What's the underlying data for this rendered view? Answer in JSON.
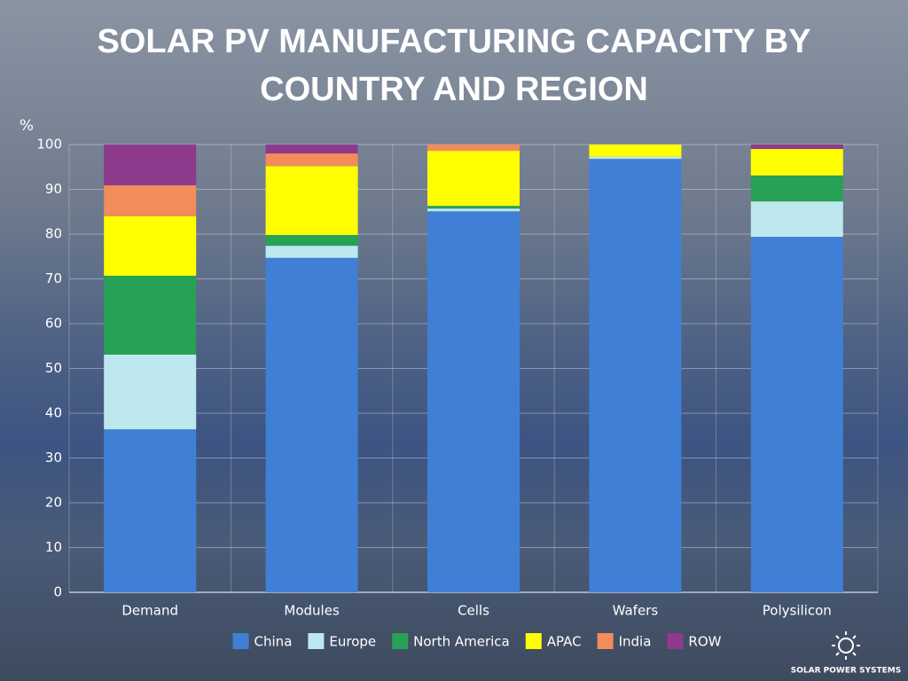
{
  "chart_data": {
    "type": "stacked_bar",
    "title": "SOLAR PV MANUFACTURING CAPACITY BY COUNTRY AND REGION",
    "y_label": "%",
    "categories": [
      "Demand",
      "Modules",
      "Cells",
      "Wafers",
      "Polysilicon"
    ],
    "series": [
      {
        "name": "China",
        "color": "#3f80d6",
        "values": [
          36.4,
          74.7,
          85.1,
          96.8,
          79.4
        ]
      },
      {
        "name": "Europe",
        "color": "#bde8f0",
        "values": [
          16.7,
          2.7,
          0.6,
          0.5,
          7.9
        ]
      },
      {
        "name": "North America",
        "color": "#27a155",
        "values": [
          17.6,
          2.4,
          0.6,
          0,
          5.8
        ]
      },
      {
        "name": "APAC",
        "color": "#ffff00",
        "values": [
          13.3,
          15.4,
          12.3,
          2.7,
          5.9
        ]
      },
      {
        "name": "India",
        "color": "#f28c5a",
        "values": [
          6.9,
          2.8,
          1.4,
          0,
          0
        ]
      },
      {
        "name": "ROW",
        "color": "#8e3a8c",
        "values": [
          9.1,
          2.0,
          0,
          0,
          1.0
        ]
      }
    ],
    "ylim": [
      0,
      100
    ],
    "yticks": [
      0,
      10,
      20,
      30,
      40,
      50,
      60,
      70,
      80,
      90,
      100
    ],
    "grid": true,
    "legend": "bottom"
  },
  "logo": {
    "text": "SOLAR POWER SYSTEMS"
  }
}
